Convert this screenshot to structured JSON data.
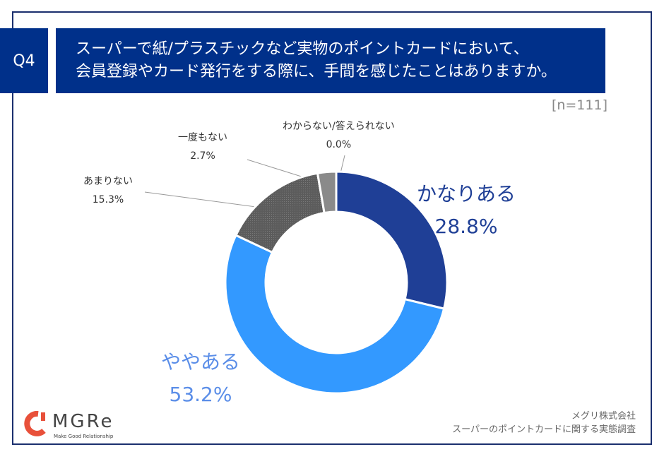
{
  "header": {
    "question_no": "Q4",
    "title_line1": "スーパーで紙/プラスチックなど実物のポイントカードにおいて、",
    "title_line2": "会員登録やカード発行をする際に、手間を感じたことはありますか。",
    "sample": "[n=111]"
  },
  "chart_data": {
    "type": "pie",
    "donut": true,
    "title": "スーパーで紙/プラスチックなど実物のポイントカードにおいて、会員登録やカード発行をする際に、手間を感じたことはありますか。",
    "slices": [
      {
        "label": "かなりある",
        "value": 28.8,
        "display": "28.8%",
        "color": "#1f3f96"
      },
      {
        "label": "ややある",
        "value": 53.2,
        "display": "53.2%",
        "color": "#3399ff"
      },
      {
        "label": "あまりない",
        "value": 15.3,
        "display": "15.3%",
        "color": "#666666"
      },
      {
        "label": "一度もない",
        "value": 2.7,
        "display": "2.7%",
        "color": "#8a8a8a"
      },
      {
        "label": "わからない/答えられない",
        "value": 0.0,
        "display": "0.0%",
        "color": "#b0b0b0"
      }
    ]
  },
  "footer": {
    "company": "メグリ株式会社",
    "survey": "スーパーのポイントカードに関する実態調査",
    "logo_text": "MGRe",
    "logo_tagline": "Make Good Relationship"
  }
}
